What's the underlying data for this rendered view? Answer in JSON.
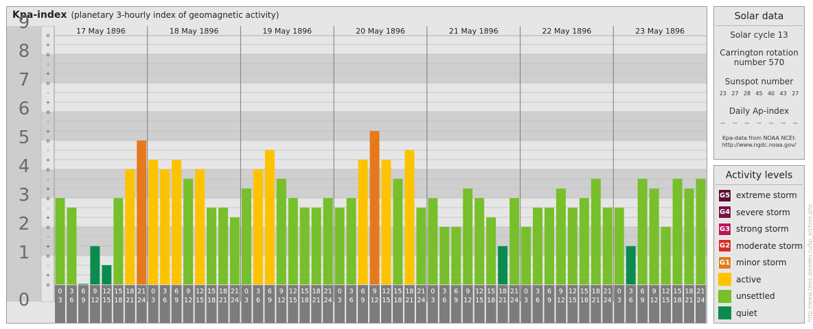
{
  "title": "Kpa-index",
  "subtitle": "(planetary 3-hourly index of geomagnetic activity)",
  "chart_data": {
    "type": "bar",
    "title": "Kpa-index",
    "subtitle": "(planetary 3-hourly index of geomagnetic activity)",
    "ylim": [
      0,
      9
    ],
    "y_ticks": [
      "0",
      "1",
      "2",
      "3",
      "4",
      "5",
      "6",
      "7",
      "8",
      "9"
    ],
    "minor_tick_labels": [
      "o",
      "+",
      "-"
    ],
    "days": [
      "17 May 1896",
      "18 May 1896",
      "19 May 1896",
      "20 May 1896",
      "21 May 1896",
      "22 May 1896",
      "23 May 1896"
    ],
    "interval_starts": [
      "0",
      "3",
      "6",
      "9",
      "12",
      "15",
      "18",
      "21"
    ],
    "interval_ends": [
      "3",
      "6",
      "9",
      "12",
      "15",
      "18",
      "21",
      "24"
    ],
    "values": [
      3,
      2.67,
      0,
      1.33,
      0.67,
      3,
      4,
      5,
      4.33,
      4,
      4.33,
      3.67,
      4,
      2.67,
      2.67,
      2.33,
      3.33,
      4,
      4.67,
      3.67,
      3,
      2.67,
      2.67,
      3,
      2.67,
      3,
      4.33,
      5.33,
      4.33,
      3.67,
      4.67,
      2.67,
      3,
      2,
      2,
      3.33,
      3,
      2.33,
      1.33,
      3,
      2,
      2.67,
      2.67,
      3.33,
      2.67,
      3,
      3.67,
      2.67,
      2.67,
      1.33,
      3.67,
      3.33,
      2,
      3.67,
      3.33,
      3.67
    ],
    "colors": {
      "quiet": "#0b8b4e",
      "unsettled": "#77bf2b",
      "active": "#fdc300",
      "minor_storm": "#e5791b"
    }
  },
  "solar": {
    "title": "Solar data",
    "cycle": "Solar cycle 13",
    "carrington_line1": "Carrington rotation",
    "carrington_line2": "number 570",
    "sunspot_title": "Sunspot number",
    "sunspot_values": [
      "23",
      "27",
      "28",
      "45",
      "40",
      "43",
      "27"
    ],
    "ap_title": "Daily Ap-index",
    "ap_values": [
      "--",
      "--",
      "--",
      "--",
      "--",
      "--",
      "--"
    ],
    "source_line1": "Kpa-data from NOAA NCEI:",
    "source_line2": "http://www.ngdc.noaa.gov/"
  },
  "levels": {
    "title": "Activity levels",
    "items": [
      {
        "code": "G5",
        "label": "extreme storm",
        "color": "#5a0f38"
      },
      {
        "code": "G4",
        "label": "severe storm",
        "color": "#7b1146"
      },
      {
        "code": "G3",
        "label": "strong storm",
        "color": "#b9155a"
      },
      {
        "code": "G2",
        "label": "moderate storm",
        "color": "#d52e23"
      },
      {
        "code": "G1",
        "label": "minor storm",
        "color": "#e5791b"
      },
      {
        "code": "",
        "label": "active",
        "color": "#fdc300"
      },
      {
        "code": "",
        "label": "unsettled",
        "color": "#77bf2b"
      },
      {
        "code": "",
        "label": "quiet",
        "color": "#0b8b4e"
      }
    ]
  },
  "watermark": "http://www.tesis.lebedev.ru/kp_archive.php"
}
